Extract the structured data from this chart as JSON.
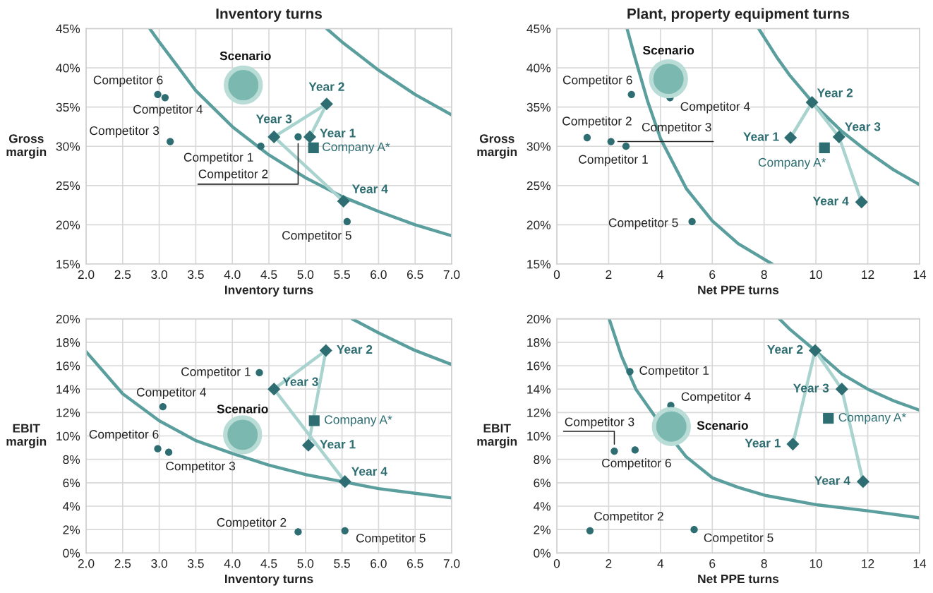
{
  "chart_data": [
    {
      "type": "scatter",
      "title": "Inventory turns",
      "xlabel": "Inventory turns",
      "ylabel": "Gross\nmargin",
      "xlim": [
        2.0,
        7.0
      ],
      "ylim": [
        15,
        45
      ],
      "xticks": [
        {
          "value": 2.0,
          "label": "2.0"
        },
        {
          "value": 2.5,
          "label": "2.5"
        },
        {
          "value": 3.0,
          "label": "3.0"
        },
        {
          "value": 3.5,
          "label": "3.5"
        },
        {
          "value": 4.0,
          "label": "4.0"
        },
        {
          "value": 4.5,
          "label": "4.5"
        },
        {
          "value": 5.0,
          "label": "5.0"
        },
        {
          "value": 5.5,
          "label": "5.5"
        },
        {
          "value": 6.0,
          "label": "6.0"
        },
        {
          "value": 6.5,
          "label": "6.5"
        },
        {
          "value": 7.0,
          "label": "7.0"
        }
      ],
      "yticks": [
        {
          "value": 15,
          "label": "15%"
        },
        {
          "value": 20,
          "label": "20%"
        },
        {
          "value": 25,
          "label": "25%"
        },
        {
          "value": 30,
          "label": "30%"
        },
        {
          "value": 35,
          "label": "35%"
        },
        {
          "value": 40,
          "label": "40%"
        },
        {
          "value": 45,
          "label": "45%"
        }
      ],
      "grid": true,
      "legend": false,
      "series": [
        {
          "type": "line",
          "color": "#5a9e9e",
          "x": [
            2.87,
            3.0,
            3.5,
            4.0,
            4.5,
            5.0,
            5.5,
            6.0,
            6.5,
            7.0
          ],
          "values": [
            45,
            43.3,
            37.1,
            32.5,
            28.9,
            26.0,
            23.6,
            21.7,
            20.0,
            18.6
          ]
        },
        {
          "type": "line",
          "color": "#5a9e9e",
          "x": [
            5.29,
            5.5,
            6.0,
            6.5,
            7.0
          ],
          "values": [
            45,
            43.3,
            39.7,
            36.6,
            34.0
          ]
        },
        {
          "type": "line",
          "color": "#a9d3cf",
          "x": [
            5.06,
            5.29,
            4.57,
            5.52
          ],
          "values": [
            31.2,
            35.4,
            31.2,
            23.0
          ]
        },
        {
          "type": "scatter",
          "name": "Competitor 1",
          "marker": "circle",
          "color": "#2e6e72",
          "x": [
            4.39
          ],
          "values": [
            30.0
          ]
        },
        {
          "type": "scatter",
          "name": "Competitor 2",
          "marker": "circle",
          "color": "#2e6e72",
          "x": [
            4.9
          ],
          "values": [
            31.2
          ]
        },
        {
          "type": "scatter",
          "name": "Competitor 3",
          "marker": "circle",
          "color": "#2e6e72",
          "x": [
            3.15
          ],
          "values": [
            30.6
          ]
        },
        {
          "type": "scatter",
          "name": "Competitor 4",
          "marker": "circle",
          "color": "#2e6e72",
          "x": [
            3.08
          ],
          "values": [
            36.2
          ]
        },
        {
          "type": "scatter",
          "name": "Competitor 5",
          "marker": "circle",
          "color": "#2e6e72",
          "x": [
            5.57
          ],
          "values": [
            20.4
          ]
        },
        {
          "type": "scatter",
          "name": "Competitor 6",
          "marker": "circle",
          "color": "#2e6e72",
          "x": [
            2.98
          ],
          "values": [
            36.6
          ]
        },
        {
          "type": "scatter",
          "name": "Company A*",
          "marker": "square",
          "color": "#2e6e72",
          "x": [
            5.11
          ],
          "values": [
            29.8
          ]
        },
        {
          "type": "scatter",
          "name": "Year 1",
          "marker": "diamond",
          "color": "#2e6e72",
          "x": [
            5.06
          ],
          "values": [
            31.2
          ]
        },
        {
          "type": "scatter",
          "name": "Year 2",
          "marker": "diamond",
          "color": "#2e6e72",
          "x": [
            5.29
          ],
          "values": [
            35.4
          ]
        },
        {
          "type": "scatter",
          "name": "Year 3",
          "marker": "diamond",
          "color": "#2e6e72",
          "x": [
            4.57
          ],
          "values": [
            31.2
          ]
        },
        {
          "type": "scatter",
          "name": "Year 4",
          "marker": "diamond",
          "color": "#2e6e72",
          "x": [
            5.52
          ],
          "values": [
            23.0
          ]
        },
        {
          "type": "bubble",
          "name": "Scenario",
          "color": "#7ab8b0",
          "x": [
            4.15
          ],
          "values": [
            37.8
          ],
          "sizes": [
            1
          ]
        }
      ]
    },
    {
      "type": "scatter",
      "title": "Plant, property equipment turns",
      "xlabel": "Net PPE turns",
      "ylabel": "Gross\nmargin",
      "xlim": [
        0,
        14
      ],
      "ylim": [
        15,
        45
      ],
      "xticks": [
        0,
        2,
        4,
        6,
        8,
        10,
        12,
        14
      ],
      "yticks": [
        {
          "value": 15,
          "label": "15%"
        },
        {
          "value": 20,
          "label": "20%"
        },
        {
          "value": 25,
          "label": "25%"
        },
        {
          "value": 30,
          "label": "30%"
        },
        {
          "value": 35,
          "label": "35%"
        },
        {
          "value": 40,
          "label": "40%"
        },
        {
          "value": 45,
          "label": "45%"
        }
      ],
      "grid": true,
      "legend": false,
      "series": [
        {
          "type": "line",
          "color": "#5a9e9e",
          "x": [
            2.71,
            3.0,
            3.5,
            4.0,
            5.0,
            6.0,
            7.0,
            8.31
          ],
          "values": [
            45,
            41.5,
            35.8,
            31.0,
            24.6,
            20.5,
            17.6,
            15.0
          ]
        },
        {
          "type": "line",
          "color": "#5a9e9e",
          "x": [
            7.79,
            8.5,
            9.0,
            10,
            11,
            12,
            13,
            14
          ],
          "values": [
            45,
            41.3,
            39.0,
            35.1,
            31.9,
            29.3,
            27.0,
            25.1
          ]
        },
        {
          "type": "line",
          "color": "#a9d3cf",
          "x": [
            9.02,
            9.85,
            10.89,
            11.76
          ],
          "values": [
            31.1,
            35.6,
            31.2,
            22.9
          ]
        },
        {
          "type": "scatter",
          "name": "Competitor 1",
          "marker": "circle",
          "color": "#2e6e72",
          "x": [
            2.67
          ],
          "values": [
            30.0
          ]
        },
        {
          "type": "scatter",
          "name": "Competitor 2",
          "marker": "circle",
          "color": "#2e6e72",
          "x": [
            1.17
          ],
          "values": [
            31.1
          ]
        },
        {
          "type": "scatter",
          "name": "Competitor 3",
          "marker": "circle",
          "color": "#2e6e72",
          "x": [
            2.09
          ],
          "values": [
            30.6
          ]
        },
        {
          "type": "scatter",
          "name": "Competitor 4",
          "marker": "circle",
          "color": "#2e6e72",
          "x": [
            4.37
          ],
          "values": [
            36.2
          ]
        },
        {
          "type": "scatter",
          "name": "Competitor 5",
          "marker": "circle",
          "color": "#2e6e72",
          "x": [
            5.22
          ],
          "values": [
            20.4
          ]
        },
        {
          "type": "scatter",
          "name": "Competitor 6",
          "marker": "circle",
          "color": "#2e6e72",
          "x": [
            2.88
          ],
          "values": [
            36.6
          ]
        },
        {
          "type": "scatter",
          "name": "Company A*",
          "marker": "square",
          "color": "#2e6e72",
          "x": [
            10.33
          ],
          "values": [
            29.8
          ]
        },
        {
          "type": "scatter",
          "name": "Year 1",
          "marker": "diamond",
          "color": "#2e6e72",
          "x": [
            9.02
          ],
          "values": [
            31.1
          ]
        },
        {
          "type": "scatter",
          "name": "Year 2",
          "marker": "diamond",
          "color": "#2e6e72",
          "x": [
            9.85
          ],
          "values": [
            35.6
          ]
        },
        {
          "type": "scatter",
          "name": "Year 3",
          "marker": "diamond",
          "color": "#2e6e72",
          "x": [
            10.89
          ],
          "values": [
            31.2
          ]
        },
        {
          "type": "scatter",
          "name": "Year 4",
          "marker": "diamond",
          "color": "#2e6e72",
          "x": [
            11.76
          ],
          "values": [
            22.9
          ]
        },
        {
          "type": "bubble",
          "name": "Scenario",
          "color": "#7ab8b0",
          "x": [
            4.31
          ],
          "values": [
            38.6
          ],
          "sizes": [
            1
          ]
        }
      ]
    },
    {
      "type": "scatter",
      "xlabel": "Inventory turns",
      "ylabel": "EBIT\nmargin",
      "xlim": [
        2.0,
        7.0
      ],
      "ylim": [
        0,
        20
      ],
      "xticks": [
        {
          "value": 2.0,
          "label": "2.0"
        },
        {
          "value": 2.5,
          "label": "2.5"
        },
        {
          "value": 3.0,
          "label": "3.0"
        },
        {
          "value": 3.5,
          "label": "3.5"
        },
        {
          "value": 4.0,
          "label": "4.0"
        },
        {
          "value": 4.5,
          "label": "4.5"
        },
        {
          "value": 5.0,
          "label": "5.0"
        },
        {
          "value": 5.5,
          "label": "5.5"
        },
        {
          "value": 6.0,
          "label": "6.0"
        },
        {
          "value": 6.5,
          "label": "6.5"
        },
        {
          "value": 7.0,
          "label": "7.0"
        }
      ],
      "yticks": [
        {
          "value": 0,
          "label": "0%"
        },
        {
          "value": 2,
          "label": "2%"
        },
        {
          "value": 4,
          "label": "4%"
        },
        {
          "value": 6,
          "label": "6%"
        },
        {
          "value": 8,
          "label": "8%"
        },
        {
          "value": 10,
          "label": "10%"
        },
        {
          "value": 12,
          "label": "12%"
        },
        {
          "value": 14,
          "label": "14%"
        },
        {
          "value": 16,
          "label": "16%"
        },
        {
          "value": 18,
          "label": "18%"
        },
        {
          "value": 20,
          "label": "20%"
        }
      ],
      "grid": true,
      "legend": false,
      "series": [
        {
          "type": "line",
          "color": "#5a9e9e",
          "x": [
            2.0,
            2.5,
            3.0,
            3.5,
            4.0,
            4.5,
            5.0,
            5.5,
            6.0,
            6.5,
            7.0
          ],
          "values": [
            17.2,
            13.6,
            11.3,
            9.6,
            8.5,
            7.5,
            6.7,
            6.1,
            5.5,
            5.1,
            4.7
          ]
        },
        {
          "type": "line",
          "color": "#5a9e9e",
          "x": [
            5.64,
            6.0,
            6.5,
            7.0
          ],
          "values": [
            20,
            18.8,
            17.3,
            16.1
          ]
        },
        {
          "type": "line",
          "color": "#a9d3cf",
          "x": [
            5.04,
            5.28,
            4.57,
            5.54
          ],
          "values": [
            9.2,
            17.3,
            14.0,
            6.1
          ]
        },
        {
          "type": "scatter",
          "name": "Competitor 1",
          "marker": "circle",
          "color": "#2e6e72",
          "x": [
            4.37
          ],
          "values": [
            15.4
          ]
        },
        {
          "type": "scatter",
          "name": "Competitor 2",
          "marker": "circle",
          "color": "#2e6e72",
          "x": [
            4.9
          ],
          "values": [
            1.8
          ]
        },
        {
          "type": "scatter",
          "name": "Competitor 3",
          "marker": "circle",
          "color": "#2e6e72",
          "x": [
            3.13
          ],
          "values": [
            8.6
          ]
        },
        {
          "type": "scatter",
          "name": "Competitor 4",
          "marker": "circle",
          "color": "#2e6e72",
          "x": [
            3.05
          ],
          "values": [
            12.5
          ]
        },
        {
          "type": "scatter",
          "name": "Competitor 5",
          "marker": "circle",
          "color": "#2e6e72",
          "x": [
            5.54
          ],
          "values": [
            1.9
          ]
        },
        {
          "type": "scatter",
          "name": "Competitor 6",
          "marker": "circle",
          "color": "#2e6e72",
          "x": [
            2.98
          ],
          "values": [
            8.9
          ]
        },
        {
          "type": "scatter",
          "name": "Company A*",
          "marker": "square",
          "color": "#2e6e72",
          "x": [
            5.12
          ],
          "values": [
            11.3
          ]
        },
        {
          "type": "scatter",
          "name": "Year 1",
          "marker": "diamond",
          "color": "#2e6e72",
          "x": [
            5.04
          ],
          "values": [
            9.2
          ]
        },
        {
          "type": "scatter",
          "name": "Year 2",
          "marker": "diamond",
          "color": "#2e6e72",
          "x": [
            5.28
          ],
          "values": [
            17.3
          ]
        },
        {
          "type": "scatter",
          "name": "Year 3",
          "marker": "diamond",
          "color": "#2e6e72",
          "x": [
            4.57
          ],
          "values": [
            14.0
          ]
        },
        {
          "type": "scatter",
          "name": "Year 4",
          "marker": "diamond",
          "color": "#2e6e72",
          "x": [
            5.54
          ],
          "values": [
            6.1
          ]
        },
        {
          "type": "bubble",
          "name": "Scenario",
          "color": "#7ab8b0",
          "x": [
            4.14
          ],
          "values": [
            10.1
          ],
          "sizes": [
            1
          ]
        }
      ]
    },
    {
      "type": "scatter",
      "xlabel": "Net PPE turns",
      "ylabel": "EBIT\nmargin",
      "xlim": [
        0,
        14
      ],
      "ylim": [
        0,
        20
      ],
      "xticks": [
        0,
        2,
        4,
        6,
        8,
        10,
        12,
        14
      ],
      "yticks": [
        {
          "value": 0,
          "label": "0%"
        },
        {
          "value": 2,
          "label": "2%"
        },
        {
          "value": 4,
          "label": "4%"
        },
        {
          "value": 6,
          "label": "6%"
        },
        {
          "value": 8,
          "label": "8%"
        },
        {
          "value": 10,
          "label": "10%"
        },
        {
          "value": 12,
          "label": "12%"
        },
        {
          "value": 14,
          "label": "14%"
        },
        {
          "value": 16,
          "label": "16%"
        },
        {
          "value": 18,
          "label": "18%"
        },
        {
          "value": 20,
          "label": "20%"
        }
      ],
      "grid": true,
      "legend": false,
      "series": [
        {
          "type": "line",
          "color": "#5a9e9e",
          "x": [
            2.02,
            2.5,
            3.05,
            4.0,
            5.0,
            6.02,
            7.0,
            8.08,
            10.08,
            12,
            14
          ],
          "values": [
            20,
            16.8,
            14.0,
            11.0,
            8.2,
            6.4,
            5.6,
            4.9,
            4.1,
            3.6,
            3.0
          ]
        },
        {
          "type": "line",
          "color": "#5a9e9e",
          "x": [
            8.59,
            9.0,
            9.97,
            11.0,
            12,
            13,
            14
          ],
          "values": [
            20,
            19.1,
            17.3,
            15.3,
            14.0,
            13.0,
            12.2
          ]
        },
        {
          "type": "line",
          "color": "#a9d3cf",
          "x": [
            9.11,
            9.97,
            11.0,
            11.82
          ],
          "values": [
            9.3,
            17.3,
            14.0,
            6.1
          ]
        },
        {
          "type": "scatter",
          "name": "Competitor 1",
          "marker": "circle",
          "color": "#2e6e72",
          "x": [
            2.82
          ],
          "values": [
            15.5
          ]
        },
        {
          "type": "scatter",
          "name": "Competitor 2",
          "marker": "circle",
          "color": "#2e6e72",
          "x": [
            1.28
          ],
          "values": [
            1.9
          ]
        },
        {
          "type": "scatter",
          "name": "Competitor 3",
          "marker": "circle",
          "color": "#2e6e72",
          "x": [
            2.22
          ],
          "values": [
            8.7
          ]
        },
        {
          "type": "scatter",
          "name": "Competitor 4",
          "marker": "circle",
          "color": "#2e6e72",
          "x": [
            4.4
          ],
          "values": [
            12.6
          ]
        },
        {
          "type": "scatter",
          "name": "Competitor 5",
          "marker": "circle",
          "color": "#2e6e72",
          "x": [
            5.3
          ],
          "values": [
            2.0
          ]
        },
        {
          "type": "scatter",
          "name": "Competitor 6",
          "marker": "circle",
          "color": "#2e6e72",
          "x": [
            3.02
          ],
          "values": [
            8.8
          ]
        },
        {
          "type": "scatter",
          "name": "Company A*",
          "marker": "square",
          "color": "#2e6e72",
          "x": [
            10.48
          ],
          "values": [
            11.5
          ]
        },
        {
          "type": "scatter",
          "name": "Year 1",
          "marker": "diamond",
          "color": "#2e6e72",
          "x": [
            9.11
          ],
          "values": [
            9.3
          ]
        },
        {
          "type": "scatter",
          "name": "Year 2",
          "marker": "diamond",
          "color": "#2e6e72",
          "x": [
            9.97
          ],
          "values": [
            17.3
          ]
        },
        {
          "type": "scatter",
          "name": "Year 3",
          "marker": "diamond",
          "color": "#2e6e72",
          "x": [
            11.0
          ],
          "values": [
            14.0
          ]
        },
        {
          "type": "scatter",
          "name": "Year 4",
          "marker": "diamond",
          "color": "#2e6e72",
          "x": [
            11.82
          ],
          "values": [
            6.1
          ]
        },
        {
          "type": "bubble",
          "name": "Scenario",
          "color": "#7ab8b0",
          "x": [
            4.42
          ],
          "values": [
            10.8
          ],
          "sizes": [
            1
          ]
        }
      ]
    }
  ]
}
